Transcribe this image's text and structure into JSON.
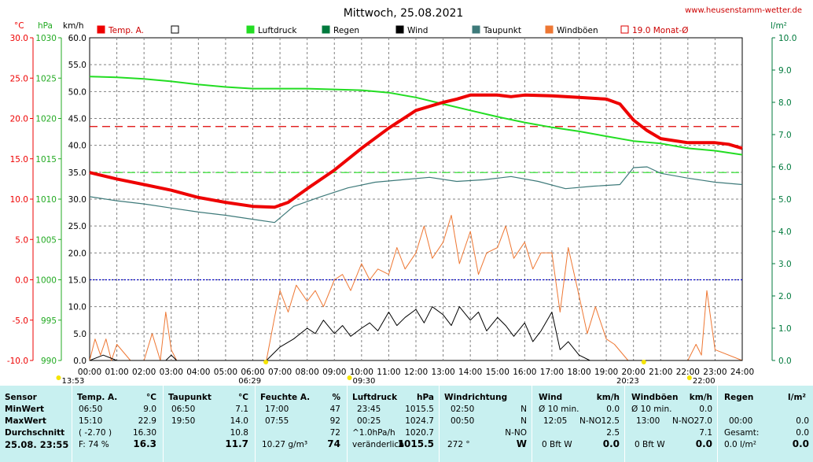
{
  "title": "Mittwoch, 25.08.2021",
  "website": "www.heusenstamm-wetter.de",
  "units": {
    "temp": "°C",
    "hpa": "hPa",
    "kmh": "km/h",
    "rain": "l/m²"
  },
  "colors": {
    "temp": "#ee0000",
    "luftdruck": "#22dd22",
    "regen": "#007a3d",
    "wind": "#000000",
    "taupunkt": "#3e7a7a",
    "windboeen": "#ee7733",
    "monat": "#dd0000",
    "axis_left": "#ee0000",
    "axis_hpa": "#22aa22",
    "axis_rain": "#007a3d",
    "table_bg": "#c8f0f0"
  },
  "legend": [
    {
      "label": "Temp. A.",
      "color": "#ee0000",
      "style": "filled"
    },
    {
      "label": "",
      "color": "#000000",
      "style": "outline"
    },
    {
      "label": "Luftdruck",
      "color": "#22dd22",
      "style": "filled"
    },
    {
      "label": "Regen",
      "color": "#007a3d",
      "style": "filled"
    },
    {
      "label": "Wind",
      "color": "#000000",
      "style": "filled"
    },
    {
      "label": "Taupunkt",
      "color": "#3e7a7a",
      "style": "filled"
    },
    {
      "label": "Windböen",
      "color": "#ee7733",
      "style": "filled"
    },
    {
      "label": "19.0 Monat-Ø",
      "color": "#dd0000",
      "style": "outline"
    }
  ],
  "axes": {
    "temp_ticks": [
      "30.0",
      "25.0",
      "20.0",
      "15.0",
      "10.0",
      "5.0",
      "0.0",
      "-5.0",
      "-10.0"
    ],
    "hpa_ticks": [
      "1030",
      "1025",
      "1020",
      "1015",
      "1010",
      "1005",
      "1000",
      "995",
      "990"
    ],
    "kmh_ticks": [
      "60.0",
      "55.0",
      "50.0",
      "45.0",
      "40.0",
      "35.0",
      "30.0",
      "25.0",
      "20.0",
      "15.0",
      "10.0",
      "5.0",
      "0.0"
    ],
    "rain_ticks": [
      "10.0",
      "9.0",
      "8.0",
      "7.0",
      "6.0",
      "5.0",
      "4.0",
      "3.0",
      "2.0",
      "1.0",
      "0.0"
    ],
    "x_ticks": [
      "00:00",
      "01:00",
      "02:00",
      "03:00",
      "04:00",
      "05:00",
      "06:00",
      "07:00",
      "08:00",
      "09:00",
      "10:00",
      "11:00",
      "12:00",
      "13:00",
      "14:00",
      "15:00",
      "16:00",
      "17:00",
      "18:00",
      "19:00",
      "20:00",
      "21:00",
      "22:00",
      "23:00",
      "24:00"
    ]
  },
  "sun_moon": [
    {
      "label": "13:53",
      "hour": -1.2,
      "row": "top"
    },
    {
      "label": "06:29",
      "hour": 6.48,
      "row": "bottom"
    },
    {
      "label": "09:30",
      "hour": 9.5,
      "row": "top"
    },
    {
      "label": "20:23",
      "hour": 20.38,
      "row": "bottom"
    },
    {
      "label": "22:00",
      "hour": 22.0,
      "row": "top"
    }
  ],
  "chart_data": {
    "type": "line",
    "title": "Mittwoch, 25.08.2021",
    "x_range": [
      "00:00",
      "24:00"
    ],
    "temp_ylim": [
      -10,
      30
    ],
    "hpa_ylim": [
      990,
      1030
    ],
    "kmh_ylim": [
      0,
      60
    ],
    "rain_ylim": [
      0,
      10
    ],
    "reference_lines": [
      {
        "name": "19.0 Monat-Ø",
        "axis": "temp",
        "value": 19.0,
        "color": "#dd0000",
        "style": "dashed"
      },
      {
        "name": "",
        "axis": "temp",
        "value": 13.3,
        "color": "#22dd22",
        "style": "dashed"
      },
      {
        "name": "",
        "axis": "temp",
        "value": 0.0,
        "color": "#0000cc",
        "style": "dotted"
      }
    ],
    "series": [
      {
        "name": "Temp. A.",
        "axis": "temp",
        "color": "#ee0000",
        "x": [
          0,
          1,
          2,
          3,
          4,
          5,
          6,
          6.8,
          7.3,
          8,
          9,
          10,
          11,
          12,
          13,
          13.5,
          14,
          15,
          15.5,
          16,
          17,
          18,
          19,
          19.5,
          20,
          20.5,
          21,
          22,
          23,
          23.5,
          24
        ],
        "y": [
          13.3,
          12.5,
          11.8,
          11.1,
          10.2,
          9.6,
          9.1,
          9.0,
          9.6,
          11.3,
          13.6,
          16.3,
          18.8,
          21.0,
          22.0,
          22.4,
          22.9,
          22.9,
          22.7,
          22.9,
          22.8,
          22.6,
          22.4,
          21.8,
          19.8,
          18.5,
          17.5,
          17.0,
          17.0,
          16.8,
          16.3
        ]
      },
      {
        "name": "Luftdruck",
        "axis": "hpa",
        "color": "#22dd22",
        "x": [
          0,
          1,
          2,
          3,
          4,
          5,
          6,
          7,
          8,
          9,
          10,
          11,
          12,
          13,
          14,
          15,
          16,
          17,
          18,
          19,
          20,
          21,
          22,
          23,
          24
        ],
        "y": [
          1025.2,
          1025.1,
          1024.9,
          1024.6,
          1024.2,
          1023.9,
          1023.7,
          1023.7,
          1023.7,
          1023.6,
          1023.5,
          1023.2,
          1022.6,
          1021.8,
          1021.0,
          1020.2,
          1019.5,
          1018.9,
          1018.4,
          1017.8,
          1017.2,
          1016.9,
          1016.3,
          1016.0,
          1015.5
        ]
      },
      {
        "name": "Taupunkt",
        "axis": "temp",
        "color": "#3e7a7a",
        "x": [
          0,
          1,
          2,
          3,
          4,
          5,
          6,
          6.8,
          7.5,
          8.5,
          9.5,
          10.5,
          11.5,
          12.5,
          13.5,
          14.5,
          15.5,
          16.5,
          17.5,
          18.5,
          19.5,
          20,
          20.5,
          21,
          22,
          23,
          24
        ],
        "y": [
          10.3,
          9.8,
          9.4,
          8.9,
          8.4,
          8.0,
          7.5,
          7.1,
          9.1,
          10.3,
          11.4,
          12.1,
          12.4,
          12.7,
          12.2,
          12.4,
          12.8,
          12.2,
          11.3,
          11.6,
          11.8,
          13.9,
          14.0,
          13.2,
          12.6,
          12.1,
          11.8
        ]
      },
      {
        "name": "Wind",
        "axis": "kmh",
        "color": "#000000",
        "x": [
          0,
          0.5,
          1,
          2.8,
          3.0,
          3.2,
          6.5,
          7.0,
          7.5,
          8.0,
          8.3,
          8.6,
          9.0,
          9.3,
          9.6,
          10.0,
          10.3,
          10.6,
          11.0,
          11.3,
          11.6,
          12.0,
          12.3,
          12.6,
          13.0,
          13.3,
          13.6,
          14.0,
          14.3,
          14.6,
          15.0,
          15.3,
          15.6,
          16.0,
          16.3,
          16.6,
          17.0,
          17.3,
          17.6,
          18.0,
          18.4,
          24
        ],
        "y": [
          0,
          1,
          0,
          0,
          1,
          0,
          0,
          2.5,
          4,
          6,
          5,
          7.5,
          5,
          6.5,
          4.5,
          6,
          7,
          5.5,
          9,
          6.5,
          8,
          9.5,
          7,
          10,
          8.5,
          6.5,
          10,
          7.5,
          9,
          5.5,
          8,
          6.5,
          4.5,
          7,
          3.5,
          5.5,
          9,
          2,
          3.5,
          1,
          0,
          0
        ]
      },
      {
        "name": "Windböen",
        "axis": "kmh",
        "color": "#ee7733",
        "x": [
          0,
          0.2,
          0.4,
          0.6,
          0.8,
          1.0,
          1.5,
          2.0,
          2.3,
          2.6,
          2.8,
          3.0,
          3.2,
          6.5,
          6.8,
          7.0,
          7.3,
          7.6,
          8.0,
          8.3,
          8.6,
          9.0,
          9.3,
          9.6,
          10.0,
          10.3,
          10.6,
          11.0,
          11.3,
          11.6,
          12.0,
          12.3,
          12.6,
          13.0,
          13.3,
          13.6,
          14.0,
          14.3,
          14.6,
          15.0,
          15.3,
          15.6,
          16.0,
          16.3,
          16.6,
          17.0,
          17.3,
          17.6,
          18.0,
          18.3,
          18.6,
          19.0,
          19.3,
          19.8,
          20.2,
          21,
          22,
          22.3,
          22.5,
          22.7,
          23,
          24
        ],
        "y": [
          0,
          4,
          1,
          4,
          0,
          3,
          0,
          0,
          5,
          0,
          9,
          2,
          0,
          0,
          8,
          13,
          9,
          14,
          11,
          13,
          10,
          15,
          16,
          13,
          18,
          15,
          17,
          16,
          21,
          17,
          20,
          25,
          19,
          22,
          27,
          18,
          24,
          16,
          20,
          21,
          25,
          19,
          22,
          17,
          20,
          20,
          9,
          21,
          12,
          5,
          10,
          4,
          3,
          0,
          0,
          0,
          0,
          3,
          1,
          13,
          2,
          0
        ]
      }
    ]
  },
  "table": {
    "row_labels": {
      "sensor": "Sensor",
      "min": "MinWert",
      "max": "MaxWert",
      "avg": "Durchschnitt",
      "now": "25.08. 23:55"
    },
    "temp": {
      "header": "Temp. A.",
      "unit": "°C",
      "min_time": "06:50",
      "min_val": "9.0",
      "max_time": "15:10",
      "max_val": "22.9",
      "avg_extra": "( -2.70 )",
      "avg_val": "16.30",
      "now_extra": "F: 74 %",
      "now_val": "16.3"
    },
    "taupunkt": {
      "header": "Taupunkt",
      "unit": "°C",
      "min_time": "06:50",
      "min_val": "7.1",
      "max_time": "19:50",
      "max_val": "14.0",
      "avg_val": "10.8",
      "now_val": "11.7"
    },
    "feuchte": {
      "header": "Feuchte A.",
      "unit": "%",
      "min_time": "17:00",
      "min_val": "47",
      "max_time": "07:55",
      "max_val": "92",
      "avg_val": "72",
      "now_extra": "10.27 g/m³",
      "now_val": "74"
    },
    "luftdruck": {
      "header": "Luftdruck",
      "unit": "hPa",
      "min_time": "23:45",
      "min_val": "1015.5",
      "max_time": "00:25",
      "max_val": "1024.7",
      "avg_extra": "^1.0hPa/h",
      "avg_val": "1020.7",
      "now_extra": "veränderlich",
      "now_arrow": "↓",
      "now_val": "1015.5"
    },
    "windrichtung": {
      "header": "Windrichtung",
      "min_time": "02:50",
      "min_val": "N",
      "max_time": "00:50",
      "max_val": "N",
      "avg_val": "N-NO",
      "now_extra": "272 °",
      "now_val": "W"
    },
    "wind": {
      "header": "Wind",
      "unit": "km/h",
      "min_label": "Ø 10 min.",
      "min_val": "0.0",
      "max_time": "12:05",
      "max_dir": "N-NO",
      "max_val": "12.5",
      "avg_val": "2.5",
      "now_extra": "0 Bft W",
      "now_val": "0.0"
    },
    "windboeen": {
      "header": "Windböen",
      "unit": "km/h",
      "min_label": "Ø 10 min.",
      "min_val": "0.0",
      "max_time": "13:00",
      "max_dir": "N-NO",
      "max_val": "27.0",
      "avg_val": "7.1",
      "now_extra": "0 Bft W",
      "now_val": "0.0"
    },
    "regen": {
      "header": "Regen",
      "unit": "l/m²",
      "min_time": "00:00",
      "min_val": "0.0",
      "max_label": "Gesamt:",
      "max_val": "0.0",
      "now_extra": "0.0 l/m²",
      "now_val": "0.0"
    }
  }
}
